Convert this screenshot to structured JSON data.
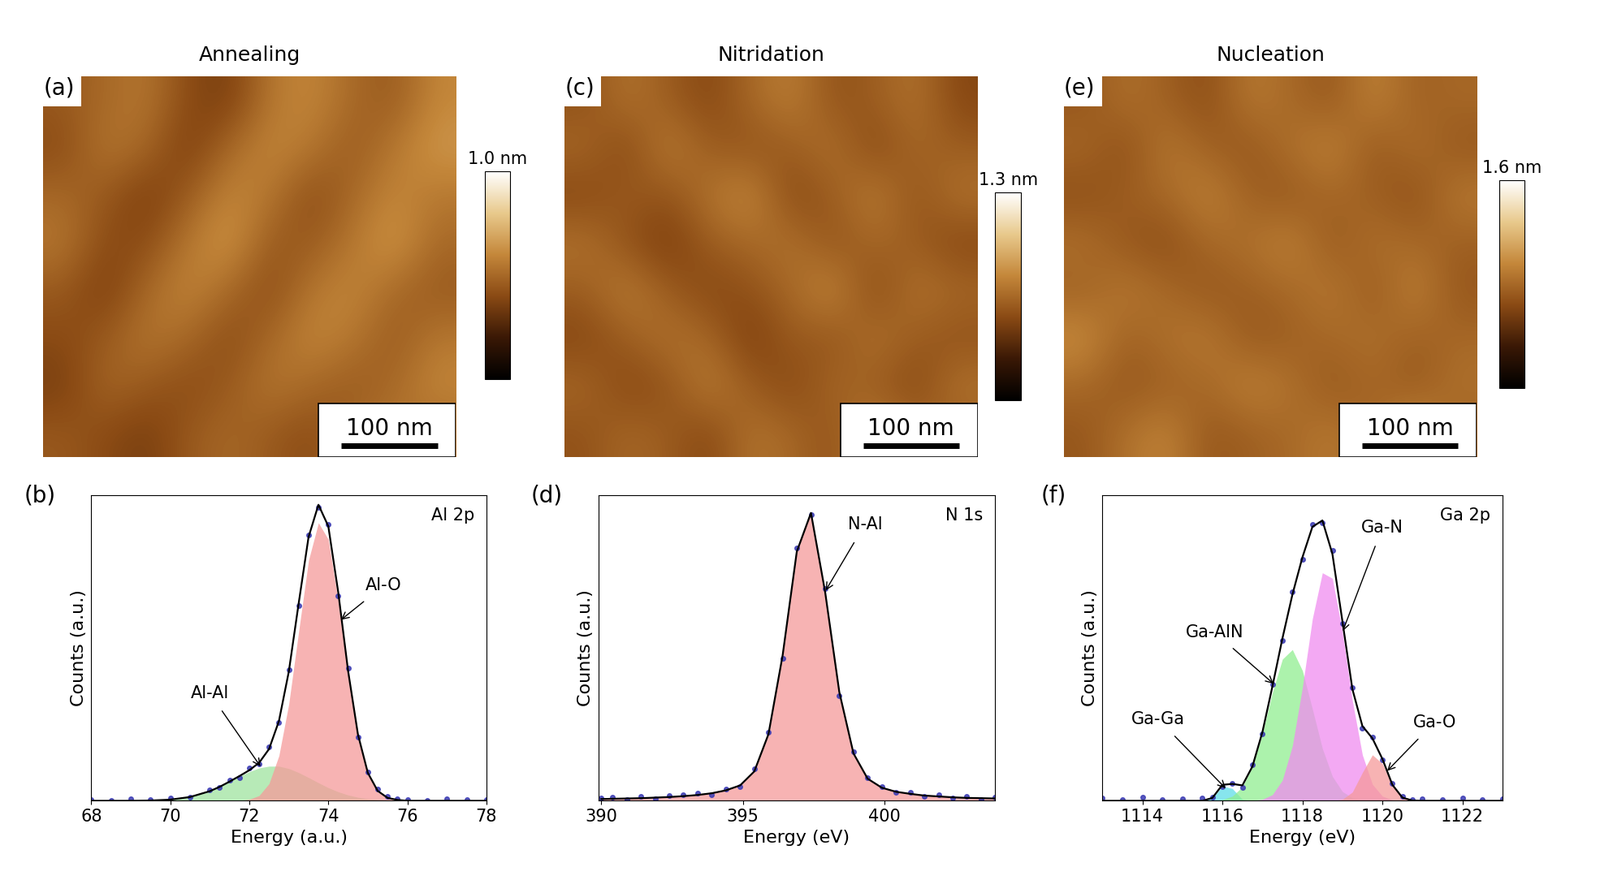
{
  "chart_data": [
    {
      "type": "heatmap",
      "title": "Annealing",
      "panel": "(a)",
      "tick_labels": false,
      "width_nm": 430,
      "height_nm": 400,
      "clim": [
        0,
        1.0
      ],
      "colorbar_ticks": [
        {
          "value": 1.0,
          "label": "1.0 nm"
        }
      ],
      "scale_bar": {
        "length": 100,
        "label": "100 nm"
      },
      "cells": [
        [
          0.45,
          0.5,
          0.55,
          0.4,
          0.35,
          0.55,
          0.6,
          0.5,
          0.45,
          0.6
        ],
        [
          0.4,
          0.55,
          0.5,
          0.35,
          0.5,
          0.6,
          0.55,
          0.45,
          0.55,
          0.65
        ],
        [
          0.5,
          0.45,
          0.35,
          0.45,
          0.6,
          0.55,
          0.4,
          0.5,
          0.6,
          0.55
        ],
        [
          0.55,
          0.4,
          0.4,
          0.55,
          0.65,
          0.45,
          0.45,
          0.55,
          0.65,
          0.5
        ],
        [
          0.45,
          0.35,
          0.5,
          0.6,
          0.5,
          0.4,
          0.55,
          0.6,
          0.5,
          0.45
        ],
        [
          0.4,
          0.45,
          0.55,
          0.5,
          0.4,
          0.5,
          0.6,
          0.55,
          0.45,
          0.55
        ],
        [
          0.35,
          0.5,
          0.45,
          0.4,
          0.45,
          0.55,
          0.5,
          0.45,
          0.5,
          0.6
        ],
        [
          0.45,
          0.4,
          0.35,
          0.45,
          0.5,
          0.45,
          0.4,
          0.5,
          0.55,
          0.5
        ]
      ]
    },
    {
      "type": "heatmap",
      "title": "Nitridation",
      "panel": "(c)",
      "tick_labels": false,
      "width_nm": 430,
      "height_nm": 400,
      "clim": [
        0,
        1.3
      ],
      "colorbar_ticks": [
        {
          "value": 1.3,
          "label": "1.3 nm"
        }
      ],
      "scale_bar": {
        "length": 100,
        "label": "100 nm"
      },
      "cells": [
        [
          0.55,
          0.7,
          0.6,
          0.5,
          0.65,
          0.75,
          0.55,
          0.6,
          0.7,
          0.5
        ],
        [
          0.65,
          0.5,
          0.75,
          0.6,
          0.55,
          0.6,
          0.7,
          0.5,
          0.65,
          0.6
        ],
        [
          0.5,
          0.6,
          0.55,
          0.7,
          0.8,
          0.5,
          0.6,
          0.75,
          0.55,
          0.7
        ],
        [
          0.7,
          0.55,
          0.45,
          0.6,
          0.65,
          0.7,
          0.55,
          0.65,
          0.6,
          0.5
        ],
        [
          0.6,
          0.75,
          0.6,
          0.5,
          0.55,
          0.65,
          0.8,
          0.5,
          0.7,
          0.65
        ],
        [
          0.5,
          0.6,
          0.7,
          0.65,
          0.45,
          0.6,
          0.55,
          0.7,
          0.6,
          0.55
        ],
        [
          0.65,
          0.5,
          0.55,
          0.75,
          0.6,
          0.5,
          0.65,
          0.6,
          0.5,
          0.7
        ],
        [
          0.55,
          0.65,
          0.6,
          0.5,
          0.7,
          0.65,
          0.55,
          0.75,
          0.65,
          0.6
        ]
      ]
    },
    {
      "type": "heatmap",
      "title": "Nucleation",
      "panel": "(e)",
      "tick_labels": false,
      "width_nm": 430,
      "height_nm": 400,
      "clim": [
        0,
        1.6
      ],
      "colorbar_ticks": [
        {
          "value": 1.6,
          "label": "1.6 nm"
        }
      ],
      "scale_bar": {
        "length": 100,
        "label": "100 nm"
      },
      "cells": [
        [
          0.7,
          0.85,
          0.75,
          0.65,
          0.9,
          0.8,
          0.7,
          0.95,
          0.75,
          0.8
        ],
        [
          0.8,
          0.65,
          0.9,
          0.75,
          0.7,
          0.85,
          0.95,
          0.7,
          0.85,
          0.7
        ],
        [
          0.65,
          0.75,
          0.8,
          0.95,
          0.75,
          0.7,
          0.8,
          0.75,
          0.65,
          0.9
        ],
        [
          0.85,
          0.7,
          0.65,
          0.8,
          0.85,
          0.95,
          0.7,
          0.85,
          0.8,
          0.75
        ],
        [
          0.75,
          0.9,
          0.8,
          0.7,
          0.75,
          0.8,
          0.9,
          0.7,
          0.95,
          0.7
        ],
        [
          1.0,
          0.75,
          0.85,
          0.9,
          0.7,
          0.75,
          0.8,
          0.85,
          0.75,
          0.8
        ],
        [
          0.8,
          0.7,
          0.75,
          0.8,
          0.95,
          0.85,
          0.7,
          0.8,
          0.7,
          0.85
        ],
        [
          0.7,
          0.85,
          0.95,
          0.7,
          0.75,
          0.8,
          0.9,
          0.75,
          1.05,
          0.75
        ]
      ]
    },
    {
      "type": "line",
      "panel": "(b)",
      "label": "Al 2p",
      "x_label": "Energy (a.u.)",
      "y_label": "Counts (a.u.)",
      "tick_labels": "x",
      "xlim": [
        68,
        78
      ],
      "xticks": [
        68,
        70,
        72,
        74,
        76,
        78
      ],
      "ylim": [
        0,
        1.05
      ],
      "x": [
        68,
        68.5,
        69,
        69.5,
        70,
        70.5,
        71,
        71.25,
        71.5,
        71.75,
        72,
        72.25,
        72.5,
        72.75,
        73,
        73.25,
        73.5,
        73.75,
        74,
        74.25,
        74.5,
        74.75,
        75,
        75.25,
        75.5,
        75.75,
        76,
        76.5,
        77,
        77.5,
        78
      ],
      "series": [
        {
          "name": "Al-Al",
          "type": "area",
          "color": "#9fe39f",
          "values": [
            0,
            0,
            0,
            0.001,
            0.004,
            0.013,
            0.033,
            0.048,
            0.066,
            0.084,
            0.1,
            0.113,
            0.119,
            0.119,
            0.111,
            0.097,
            0.08,
            0.062,
            0.045,
            0.031,
            0.02,
            0.012,
            0.007,
            0.004,
            0.002,
            0.001,
            0,
            0,
            0,
            0,
            0
          ]
        },
        {
          "name": "Al-O",
          "type": "area",
          "color": "#f59a9a",
          "values": [
            0,
            0,
            0,
            0,
            0,
            0,
            0,
            0,
            0,
            0.001,
            0.005,
            0.018,
            0.059,
            0.155,
            0.333,
            0.582,
            0.827,
            0.956,
            0.899,
            0.687,
            0.427,
            0.216,
            0.089,
            0.03,
            0.008,
            0.002,
            0,
            0,
            0,
            0,
            0
          ]
        },
        {
          "type": "scatter",
          "color": "#3b3bb3",
          "marker": "o",
          "values": [
            0.005,
            0.002,
            0.008,
            0.004,
            0.01,
            0.012,
            0.038,
            0.045,
            0.07,
            0.08,
            0.112,
            0.128,
            0.185,
            0.268,
            0.452,
            0.67,
            0.915,
            1.01,
            0.95,
            0.705,
            0.455,
            0.22,
            0.1,
            0.04,
            0.015,
            0.006,
            0.004,
            0.002,
            0.006,
            0.003,
            0.004
          ]
        },
        {
          "type": "line",
          "color": "#000000",
          "line_style": "solid",
          "values": [
            0,
            0,
            0,
            0.001,
            0.004,
            0.013,
            0.033,
            0.048,
            0.066,
            0.085,
            0.105,
            0.131,
            0.178,
            0.274,
            0.444,
            0.679,
            0.907,
            1.018,
            0.944,
            0.718,
            0.447,
            0.228,
            0.096,
            0.034,
            0.01,
            0.003,
            0,
            0,
            0,
            0,
            0
          ]
        }
      ],
      "annotations": [
        {
          "text": "Al-O",
          "xy": [
            74.3,
            0.62
          ],
          "xytext": [
            75.4,
            0.74
          ]
        },
        {
          "text": "Al-Al",
          "xy": [
            72.3,
            0.115
          ],
          "xytext": [
            71.0,
            0.37
          ]
        }
      ]
    },
    {
      "type": "line",
      "panel": "(d)",
      "label": "N 1s",
      "x_label": "Energy (eV)",
      "y_label": "Counts (a.u.)",
      "tick_labels": "x",
      "xlim": [
        389.9,
        403.9
      ],
      "xticks": [
        390,
        395,
        400
      ],
      "ylim": [
        0,
        1.05
      ],
      "x": [
        390.0,
        390.4,
        390.9,
        391.4,
        391.9,
        392.4,
        392.9,
        393.4,
        393.9,
        394.4,
        394.9,
        395.4,
        395.9,
        396.4,
        396.9,
        397.4,
        397.9,
        398.4,
        398.9,
        399.4,
        399.9,
        400.4,
        400.9,
        401.4,
        401.9,
        402.4,
        402.9,
        403.4,
        403.9
      ],
      "series": [
        {
          "name": "N-Al",
          "type": "area",
          "color": "#f59a9a",
          "values": [
            0.006,
            0.007,
            0.008,
            0.009,
            0.011,
            0.013,
            0.016,
            0.02,
            0.026,
            0.036,
            0.053,
            0.101,
            0.229,
            0.5,
            0.857,
            0.99,
            0.718,
            0.374,
            0.163,
            0.076,
            0.045,
            0.031,
            0.024,
            0.018,
            0.015,
            0.012,
            0.01,
            0.009,
            0.008
          ]
        },
        {
          "type": "scatter",
          "color": "#3b3bb3",
          "marker": "o",
          "values": [
            0.01,
            0.012,
            0.005,
            0.015,
            0.008,
            0.018,
            0.02,
            0.025,
            0.022,
            0.04,
            0.05,
            0.11,
            0.235,
            0.49,
            0.87,
            0.985,
            0.73,
            0.36,
            0.17,
            0.08,
            0.05,
            0.028,
            0.03,
            0.015,
            0.02,
            0.01,
            0.015,
            0.005,
            0.012
          ]
        },
        {
          "type": "line",
          "color": "#000000",
          "line_style": "solid",
          "values": [
            0.006,
            0.007,
            0.008,
            0.009,
            0.011,
            0.013,
            0.016,
            0.02,
            0.026,
            0.036,
            0.053,
            0.101,
            0.229,
            0.5,
            0.857,
            0.99,
            0.718,
            0.374,
            0.163,
            0.076,
            0.045,
            0.031,
            0.024,
            0.018,
            0.015,
            0.012,
            0.01,
            0.009,
            0.008
          ]
        }
      ],
      "annotations": [
        {
          "text": "N-Al",
          "xy": [
            397.9,
            0.72
          ],
          "xytext": [
            399.3,
            0.95
          ]
        }
      ]
    },
    {
      "type": "line",
      "panel": "(f)",
      "label": "Ga 2p",
      "x_label": "Energy (eV)",
      "y_label": "Counts (a.u.)",
      "tick_labels": "x",
      "xlim": [
        1113,
        1123
      ],
      "xticks": [
        1114,
        1116,
        1118,
        1120,
        1122
      ],
      "ylim": [
        0,
        1.05
      ],
      "x": [
        1113,
        1113.5,
        1114,
        1114.5,
        1115,
        1115.5,
        1115.75,
        1116,
        1116.25,
        1116.5,
        1116.75,
        1117,
        1117.25,
        1117.5,
        1117.75,
        1118,
        1118.25,
        1118.5,
        1118.75,
        1119,
        1119.25,
        1119.5,
        1119.75,
        1120,
        1120.25,
        1120.5,
        1120.75,
        1121,
        1121.5,
        1122,
        1122.5,
        1123
      ],
      "series": [
        {
          "name": "Ga-Ga",
          "type": "area",
          "color": "#5fdde8",
          "values": [
            0,
            0,
            0,
            0,
            0,
            0,
            0.009,
            0.051,
            0.042,
            0.005,
            0,
            0,
            0,
            0,
            0,
            0,
            0,
            0,
            0,
            0,
            0,
            0,
            0,
            0,
            0,
            0,
            0,
            0,
            0,
            0,
            0,
            0
          ]
        },
        {
          "name": "Ga-AlN",
          "type": "area",
          "color": "#90ee90",
          "values": [
            0,
            0,
            0,
            0,
            0,
            0,
            0.001,
            0.004,
            0.016,
            0.048,
            0.117,
            0.231,
            0.372,
            0.487,
            0.52,
            0.448,
            0.316,
            0.18,
            0.084,
            0.032,
            0.01,
            0.002,
            0,
            0,
            0,
            0,
            0,
            0,
            0,
            0,
            0,
            0
          ]
        },
        {
          "name": "Ga-N",
          "type": "area",
          "color": "#f08cf0",
          "values": [
            0,
            0,
            0,
            0,
            0,
            0,
            0,
            0,
            0,
            0,
            0.001,
            0.005,
            0.021,
            0.071,
            0.189,
            0.389,
            0.626,
            0.784,
            0.765,
            0.581,
            0.344,
            0.158,
            0.057,
            0.016,
            0.003,
            0,
            0,
            0,
            0,
            0,
            0,
            0
          ]
        },
        {
          "name": "Ga-O",
          "type": "area",
          "color": "#f59a9a",
          "values": [
            0,
            0,
            0,
            0,
            0,
            0,
            0,
            0,
            0,
            0,
            0,
            0,
            0,
            0,
            0,
            0,
            0,
            0,
            0,
            0.005,
            0.03,
            0.097,
            0.158,
            0.128,
            0.052,
            0.011,
            0.001,
            0,
            0,
            0,
            0,
            0
          ]
        },
        {
          "type": "scatter",
          "color": "#3b3bb3",
          "marker": "o",
          "values": [
            0.01,
            0.005,
            0.012,
            0.003,
            0.008,
            0.01,
            0.012,
            0.05,
            0.06,
            0.045,
            0.125,
            0.23,
            0.4,
            0.55,
            0.72,
            0.83,
            0.95,
            0.955,
            0.86,
            0.61,
            0.39,
            0.25,
            0.22,
            0.14,
            0.06,
            0.015,
            0.004,
            0.008,
            0.003,
            0.01,
            0.005,
            0.006
          ]
        },
        {
          "type": "line",
          "color": "#000000",
          "line_style": "solid",
          "values": [
            0,
            0,
            0,
            0,
            0,
            0,
            0.01,
            0.055,
            0.058,
            0.053,
            0.118,
            0.236,
            0.393,
            0.558,
            0.709,
            0.837,
            0.942,
            0.964,
            0.849,
            0.618,
            0.384,
            0.257,
            0.215,
            0.144,
            0.055,
            0.011,
            0.001,
            0,
            0,
            0,
            0,
            0
          ]
        }
      ],
      "annotations": [
        {
          "text": "Ga-N",
          "xy": [
            1119.0,
            0.58
          ],
          "xytext": [
            1120.0,
            0.94
          ]
        },
        {
          "text": "Ga-AlN",
          "xy": [
            1117.3,
            0.4
          ],
          "xytext": [
            1115.8,
            0.58
          ]
        },
        {
          "text": "Ga-Ga",
          "xy": [
            1116.1,
            0.04
          ],
          "xytext": [
            1114.4,
            0.28
          ]
        },
        {
          "text": "Ga-O",
          "xy": [
            1120.1,
            0.1
          ],
          "xytext": [
            1121.3,
            0.27
          ]
        }
      ]
    }
  ]
}
